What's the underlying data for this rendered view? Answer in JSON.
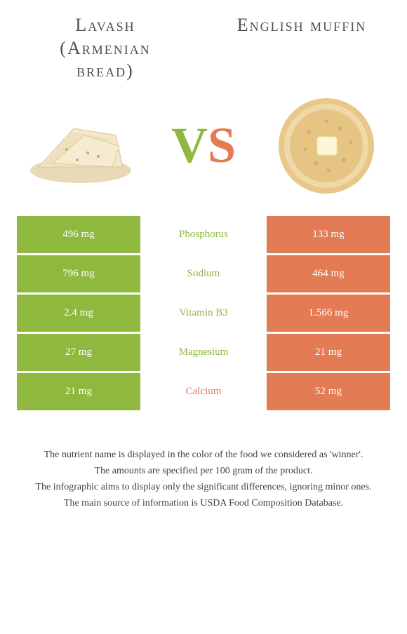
{
  "foods": {
    "left": {
      "title": "Lavash (Armenian bread)"
    },
    "right": {
      "title": "English muffin"
    }
  },
  "vs": {
    "v": "V",
    "s": "S"
  },
  "colors": {
    "left": "#8fb83e",
    "right": "#e37b54",
    "text": "#505050",
    "bg": "#ffffff"
  },
  "nutrients": [
    {
      "name": "Phosphorus",
      "left": "496 mg",
      "right": "133 mg",
      "winner": "left"
    },
    {
      "name": "Sodium",
      "left": "796 mg",
      "right": "464 mg",
      "winner": "left"
    },
    {
      "name": "Vitamin B3",
      "left": "2.4 mg",
      "right": "1.566 mg",
      "winner": "left"
    },
    {
      "name": "Magnesium",
      "left": "27 mg",
      "right": "21 mg",
      "winner": "left"
    },
    {
      "name": "Calcium",
      "left": "21 mg",
      "right": "52 mg",
      "winner": "right"
    }
  ],
  "footer": [
    "The nutrient name is displayed in the color of the food we considered as 'winner'.",
    "The amounts are specified per 100 gram of the product.",
    "The infographic aims to display only the significant differences, ignoring minor ones.",
    "The main source of information is USDA Food Composition Database."
  ]
}
